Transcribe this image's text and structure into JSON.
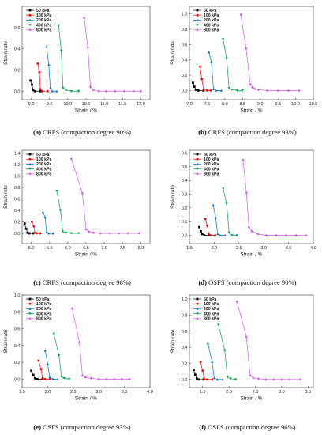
{
  "series_colors": [
    "#000000",
    "#ff0000",
    "#0070c0",
    "#00a050",
    "#d05ce3"
  ],
  "legend_labels": [
    "50 kPa",
    "100 kPa",
    "200 kPa",
    "400 kPa",
    "800 kPa"
  ],
  "chart_data": [
    {
      "type": "line",
      "caption_letter": "(a)",
      "caption": "CRFS (compaction degree 90%)",
      "xlabel": "Strain / %",
      "ylabel": "Strain rate",
      "xlim": [
        8.75,
        12.25
      ],
      "ylim": [
        -0.08,
        0.8
      ],
      "xticks": [
        9.0,
        9.5,
        10.0,
        10.5,
        11.0,
        11.5,
        12.0
      ],
      "yticks": [
        0.0,
        0.2,
        0.4,
        0.6
      ],
      "legend_position": "top-left",
      "series": [
        {
          "x": [
            8.98,
            9.02,
            9.05,
            9.1,
            9.25
          ],
          "y": [
            0.1,
            0.06,
            0.01,
            0.0,
            0.0
          ]
        },
        {
          "x": [
            9.18,
            9.22,
            9.25,
            9.3,
            9.45
          ],
          "y": [
            0.26,
            0.18,
            0.02,
            0.0,
            0.0
          ]
        },
        {
          "x": [
            9.42,
            9.48,
            9.52,
            9.58,
            9.7
          ],
          "y": [
            0.42,
            0.25,
            0.03,
            0.0,
            0.0
          ]
        },
        {
          "x": [
            9.75,
            9.82,
            9.87,
            9.95,
            10.1,
            10.3
          ],
          "y": [
            0.62,
            0.38,
            0.03,
            0.01,
            0.0,
            0.0
          ]
        },
        {
          "x": [
            10.45,
            10.55,
            10.62,
            10.7,
            10.85,
            11.05,
            11.3,
            11.55,
            11.8,
            12.0
          ],
          "y": [
            0.69,
            0.41,
            0.04,
            0.01,
            0.0,
            0.0,
            0.0,
            0.0,
            0.0,
            0.0
          ]
        }
      ]
    },
    {
      "type": "line",
      "caption_letter": "(b)",
      "caption": "CRFS (compaction degree 93%)",
      "xlabel": "Strain / %",
      "ylabel": "Strain rate",
      "xlim": [
        7.0,
        10.5
      ],
      "ylim": [
        -0.12,
        1.1
      ],
      "xticks": [
        7.0,
        7.5,
        8.0,
        8.5,
        9.0,
        9.5,
        10.0,
        10.5
      ],
      "yticks": [
        0.0,
        0.2,
        0.4,
        0.6,
        0.8,
        1.0
      ],
      "legend_position": "top-left",
      "series": [
        {
          "x": [
            7.1,
            7.14,
            7.18,
            7.25,
            7.4
          ],
          "y": [
            0.1,
            0.05,
            0.01,
            0.0,
            0.0
          ]
        },
        {
          "x": [
            7.3,
            7.35,
            7.4,
            7.5,
            7.6
          ],
          "y": [
            0.31,
            0.15,
            0.01,
            0.0,
            0.0
          ]
        },
        {
          "x": [
            7.55,
            7.62,
            7.68,
            7.75,
            7.9
          ],
          "y": [
            0.5,
            0.37,
            0.02,
            0.0,
            0.0
          ]
        },
        {
          "x": [
            7.95,
            8.05,
            8.12,
            8.2,
            8.35,
            8.5
          ],
          "y": [
            0.67,
            0.42,
            0.03,
            0.01,
            0.0,
            0.0
          ]
        },
        {
          "x": [
            8.45,
            8.6,
            8.72,
            8.78,
            8.85,
            8.95,
            9.2,
            9.5,
            9.8,
            10.1
          ],
          "y": [
            0.99,
            0.55,
            0.08,
            0.04,
            0.02,
            0.01,
            0.0,
            0.0,
            0.0,
            0.0
          ]
        }
      ]
    },
    {
      "type": "line",
      "caption_letter": "(c)",
      "caption": "CRFS (compaction degree 96%)",
      "xlabel": "Strain / %",
      "ylabel": "Strain rate",
      "xlim": [
        4.75,
        8.25
      ],
      "ylim": [
        -0.18,
        1.45
      ],
      "xticks": [
        5.0,
        5.5,
        6.0,
        6.5,
        7.0,
        7.5,
        8.0
      ],
      "yticks": [
        0.0,
        0.2,
        0.4,
        0.6,
        0.8,
        1.0,
        1.2,
        1.4
      ],
      "legend_position": "top-left",
      "series": [
        {
          "x": [
            4.82,
            4.86,
            4.9,
            4.95,
            5.05
          ],
          "y": [
            0.17,
            0.08,
            0.01,
            0.0,
            0.0
          ]
        },
        {
          "x": [
            5.02,
            5.07,
            5.1,
            5.15,
            5.25
          ],
          "y": [
            0.2,
            0.12,
            0.01,
            0.0,
            0.0
          ]
        },
        {
          "x": [
            5.32,
            5.38,
            5.42,
            5.48,
            5.6
          ],
          "y": [
            0.37,
            0.28,
            0.02,
            0.0,
            0.0
          ]
        },
        {
          "x": [
            5.7,
            5.8,
            5.86,
            5.95,
            6.1,
            6.3
          ],
          "y": [
            0.74,
            0.4,
            0.03,
            0.01,
            0.0,
            0.0
          ]
        },
        {
          "x": [
            6.1,
            6.4,
            6.5,
            6.58,
            6.7,
            6.9,
            7.15,
            7.4,
            7.65,
            7.95
          ],
          "y": [
            1.3,
            0.7,
            0.07,
            0.03,
            0.01,
            0.0,
            0.0,
            0.0,
            0.0,
            0.0
          ]
        }
      ]
    },
    {
      "type": "line",
      "caption_letter": "(d)",
      "caption": "OSFS (compaction degree 90%)",
      "xlabel": "Strain / %",
      "ylabel": "Strain rate",
      "xlim": [
        1.5,
        4.0
      ],
      "ylim": [
        -0.06,
        0.62
      ],
      "xticks": [
        1.5,
        2.0,
        2.5,
        3.0,
        3.5,
        4.0
      ],
      "yticks": [
        0.0,
        0.1,
        0.2,
        0.3,
        0.4,
        0.5,
        0.6
      ],
      "legend_position": "top-left",
      "series": [
        {
          "x": [
            1.7,
            1.73,
            1.76,
            1.8,
            1.9
          ],
          "y": [
            0.06,
            0.03,
            0.01,
            0.0,
            0.0
          ]
        },
        {
          "x": [
            1.82,
            1.86,
            1.89,
            1.93,
            2.02
          ],
          "y": [
            0.12,
            0.07,
            0.01,
            0.0,
            0.0
          ]
        },
        {
          "x": [
            1.98,
            2.03,
            2.07,
            2.12,
            2.22
          ],
          "y": [
            0.22,
            0.13,
            0.01,
            0.0,
            0.0
          ]
        },
        {
          "x": [
            2.18,
            2.25,
            2.3,
            2.36,
            2.46
          ],
          "y": [
            0.34,
            0.23,
            0.02,
            0.0,
            0.0
          ]
        },
        {
          "x": [
            2.58,
            2.65,
            2.7,
            2.76,
            2.88,
            3.05,
            3.25,
            3.45,
            3.65,
            3.85
          ],
          "y": [
            0.55,
            0.31,
            0.06,
            0.03,
            0.01,
            0.0,
            0.0,
            0.0,
            0.0,
            0.0
          ]
        }
      ]
    },
    {
      "type": "line",
      "caption_letter": "(e)",
      "caption": "OSFS (compaction degree 93%)",
      "xlabel": "Strain / %",
      "ylabel": "Strain rate",
      "xlim": [
        1.5,
        4.0
      ],
      "ylim": [
        -0.1,
        1.0
      ],
      "xticks": [
        1.5,
        2.0,
        2.5,
        3.0,
        3.5,
        4.0
      ],
      "yticks": [
        0.0,
        0.2,
        0.4,
        0.6,
        0.8,
        1.0
      ],
      "legend_position": "top-left",
      "series": [
        {
          "x": [
            1.68,
            1.72,
            1.75,
            1.8,
            1.9
          ],
          "y": [
            0.1,
            0.05,
            0.01,
            0.0,
            0.0
          ]
        },
        {
          "x": [
            1.82,
            1.87,
            1.9,
            1.95,
            2.05
          ],
          "y": [
            0.22,
            0.12,
            0.01,
            0.0,
            0.0
          ]
        },
        {
          "x": [
            1.95,
            2.0,
            2.04,
            2.1,
            2.2
          ],
          "y": [
            0.34,
            0.18,
            0.02,
            0.0,
            0.0
          ]
        },
        {
          "x": [
            2.12,
            2.22,
            2.27,
            2.32,
            2.42
          ],
          "y": [
            0.54,
            0.28,
            0.03,
            0.01,
            0.0
          ]
        },
        {
          "x": [
            2.48,
            2.62,
            2.68,
            2.74,
            2.85,
            3.0,
            3.15,
            3.3,
            3.45,
            3.6
          ],
          "y": [
            0.84,
            0.44,
            0.04,
            0.02,
            0.01,
            0.0,
            0.0,
            0.0,
            0.0,
            0.0
          ]
        }
      ]
    },
    {
      "type": "line",
      "caption_letter": "(f)",
      "caption": "OSFS (compaction degree 96%)",
      "xlabel": "Strain / %",
      "ylabel": "Strain rate",
      "xlim": [
        1.25,
        3.6
      ],
      "ylim": [
        -0.1,
        1.05
      ],
      "xticks": [
        1.5,
        2.0,
        2.5,
        3.0,
        3.5
      ],
      "yticks": [
        0.0,
        0.2,
        0.4,
        0.6,
        0.8,
        1.0
      ],
      "legend_position": "top-left",
      "series": [
        {
          "x": [
            1.33,
            1.36,
            1.39,
            1.43,
            1.52
          ],
          "y": [
            0.12,
            0.06,
            0.01,
            0.0,
            0.0
          ]
        },
        {
          "x": [
            1.46,
            1.5,
            1.53,
            1.58,
            1.68
          ],
          "y": [
            0.22,
            0.11,
            0.01,
            0.0,
            0.0
          ]
        },
        {
          "x": [
            1.6,
            1.68,
            1.72,
            1.78,
            1.88
          ],
          "y": [
            0.45,
            0.22,
            0.02,
            0.0,
            0.0
          ]
        },
        {
          "x": [
            1.8,
            1.92,
            1.97,
            2.03,
            2.13
          ],
          "y": [
            0.68,
            0.36,
            0.03,
            0.01,
            0.0
          ]
        },
        {
          "x": [
            2.15,
            2.33,
            2.4,
            2.46,
            2.56,
            2.7,
            2.85,
            3.0,
            3.15,
            3.35
          ],
          "y": [
            0.97,
            0.53,
            0.05,
            0.02,
            0.01,
            0.0,
            0.0,
            0.0,
            0.0,
            0.0
          ]
        }
      ]
    }
  ]
}
